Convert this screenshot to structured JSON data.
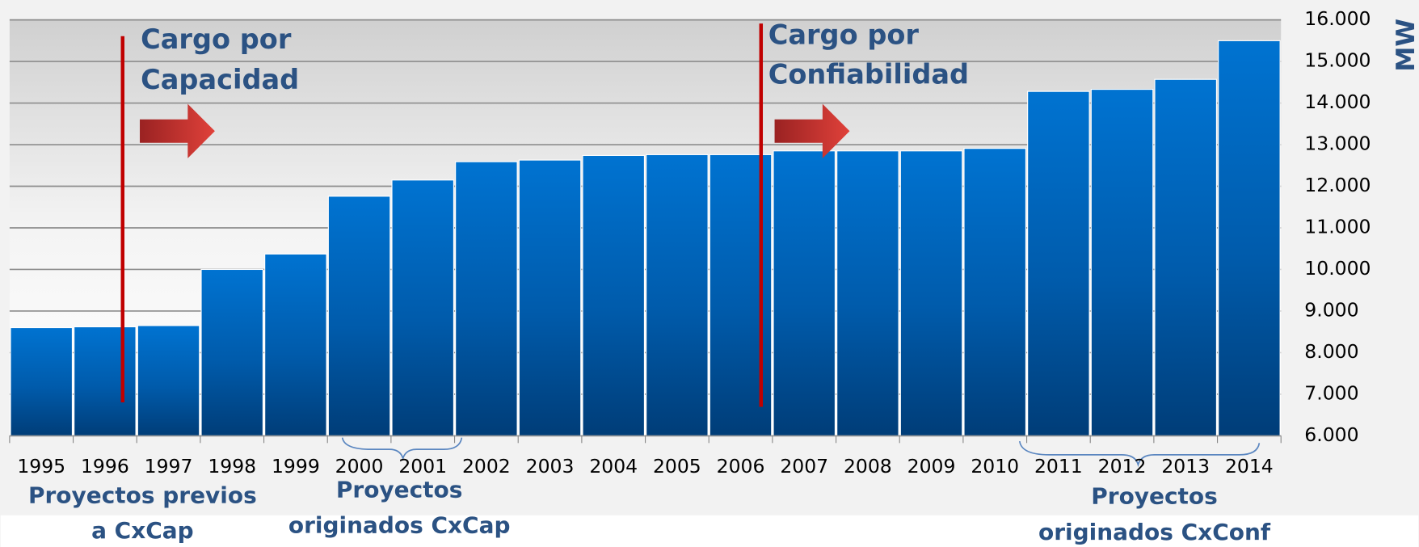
{
  "chart_data": {
    "type": "bar",
    "categories": [
      "1995",
      "1996",
      "1997",
      "1998",
      "1999",
      "2000",
      "2001",
      "2002",
      "2003",
      "2004",
      "2005",
      "2006",
      "2007",
      "2008",
      "2009",
      "2010",
      "2011",
      "2012",
      "2013",
      "2014"
    ],
    "values": [
      8600,
      8620,
      8650,
      10000,
      10370,
      11760,
      12150,
      12590,
      12630,
      12740,
      12760,
      12760,
      12850,
      12850,
      12850,
      12910,
      14280,
      14330,
      14570,
      15500
    ],
    "color": "#0070cc",
    "ylim": [
      6000,
      16000
    ],
    "yticks": [
      {
        "value": 6000,
        "label": "6.000"
      },
      {
        "value": 7000,
        "label": "7.000"
      },
      {
        "value": 8000,
        "label": "8.000"
      },
      {
        "value": 9000,
        "label": "9.000"
      },
      {
        "value": 10000,
        "label": "10.000"
      },
      {
        "value": 11000,
        "label": "11.000"
      },
      {
        "value": 12000,
        "label": "12.000"
      },
      {
        "value": 13000,
        "label": "13.000"
      },
      {
        "value": 14000,
        "label": "14.000"
      },
      {
        "value": 15000,
        "label": "15.000"
      },
      {
        "value": 16000,
        "label": "16.000"
      }
    ],
    "y_axis_label": "MW",
    "grid": true,
    "annotations": {
      "capacidad": [
        "Cargo por",
        "Capacidad"
      ],
      "confiabilidad": [
        "Cargo por",
        "Confiabilidad"
      ],
      "previos": [
        "Proyectos previos",
        "a CxCap"
      ],
      "cxcap": [
        "Proyectos",
        "originados CxCap"
      ],
      "cxconf": [
        "Proyectos",
        "originados CxConf"
      ]
    }
  }
}
